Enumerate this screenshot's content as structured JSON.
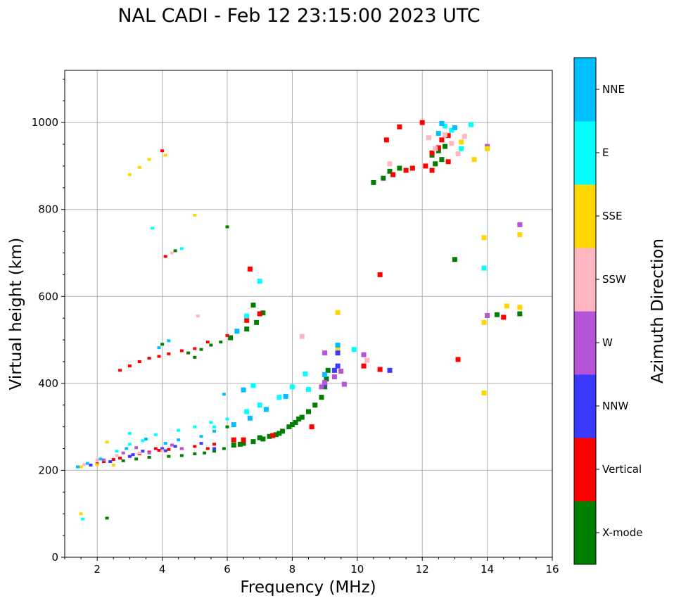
{
  "chart_data": {
    "type": "scatter",
    "title": "NAL CADI - Feb 12 23:15:00 2023 UTC",
    "xlabel": "Frequency (MHz)",
    "ylabel": "Virtual height (km)",
    "xlim": [
      1,
      16
    ],
    "ylim": [
      0,
      1120
    ],
    "xticks": [
      2,
      4,
      6,
      8,
      10,
      12,
      14,
      16
    ],
    "yticks": [
      0,
      200,
      400,
      600,
      800,
      1000
    ],
    "grid": true,
    "colorbar": {
      "label": "Azimuth Direction",
      "categories": [
        "X-mode",
        "Vertical",
        "NNW",
        "W",
        "SSW",
        "SSE",
        "E",
        "NNE"
      ],
      "colors": [
        "#008000",
        "#ff0000",
        "#3a3aff",
        "#b554d6",
        "#ffb6c1",
        "#ffd700",
        "#00ffff",
        "#00bfff"
      ]
    },
    "series": [
      {
        "name": "X-mode",
        "points": [
          [
            6.2,
            258
          ],
          [
            6.5,
            262
          ],
          [
            6.8,
            266
          ],
          [
            7.1,
            272
          ],
          [
            7.3,
            278
          ],
          [
            7.5,
            282
          ],
          [
            7.7,
            290
          ],
          [
            7.9,
            300
          ],
          [
            8.1,
            310
          ],
          [
            8.3,
            322
          ],
          [
            8.5,
            335
          ],
          [
            8.7,
            350
          ],
          [
            8.9,
            368
          ],
          [
            9.0,
            392
          ],
          [
            9.05,
            410
          ],
          [
            9.1,
            430
          ],
          [
            5.0,
            238
          ],
          [
            5.3,
            240
          ],
          [
            5.6,
            244
          ],
          [
            5.9,
            250
          ],
          [
            4.6,
            234
          ],
          [
            4.2,
            232
          ],
          [
            4.8,
            470
          ],
          [
            5.2,
            478
          ],
          [
            5.5,
            488
          ],
          [
            5.8,
            495
          ],
          [
            6.1,
            505
          ],
          [
            6.6,
            525
          ],
          [
            6.9,
            540
          ],
          [
            7.1,
            562
          ],
          [
            6.8,
            580
          ],
          [
            10.5,
            862
          ],
          [
            10.8,
            872
          ],
          [
            11.0,
            888
          ],
          [
            11.3,
            895
          ],
          [
            12.3,
            925
          ],
          [
            12.5,
            935
          ],
          [
            12.7,
            945
          ],
          [
            12.4,
            905
          ],
          [
            12.6,
            915
          ],
          [
            3.6,
            230
          ],
          [
            3.2,
            226
          ],
          [
            2.8,
            222
          ],
          [
            6.4,
            260
          ],
          [
            6.0,
            300
          ],
          [
            7.0,
            275
          ],
          [
            7.6,
            285
          ],
          [
            8.2,
            318
          ],
          [
            8.0,
            305
          ],
          [
            4.0,
            490
          ],
          [
            5.0,
            460
          ],
          [
            13.0,
            685
          ],
          [
            14.3,
            558
          ],
          [
            15.0,
            560
          ],
          [
            2.3,
            90
          ],
          [
            6.0,
            760
          ],
          [
            4.4,
            705
          ]
        ]
      },
      {
        "name": "Vertical",
        "points": [
          [
            2.0,
            215
          ],
          [
            2.2,
            220
          ],
          [
            2.5,
            225
          ],
          [
            2.7,
            228
          ],
          [
            3.0,
            232
          ],
          [
            3.3,
            238
          ],
          [
            3.6,
            242
          ],
          [
            3.9,
            246
          ],
          [
            4.2,
            248
          ],
          [
            4.6,
            250
          ],
          [
            5.0,
            255
          ],
          [
            5.4,
            250
          ],
          [
            2.7,
            430
          ],
          [
            3.0,
            440
          ],
          [
            3.3,
            450
          ],
          [
            3.6,
            458
          ],
          [
            3.9,
            462
          ],
          [
            4.2,
            468
          ],
          [
            4.6,
            475
          ],
          [
            5.0,
            480
          ],
          [
            5.4,
            495
          ],
          [
            6.0,
            510
          ],
          [
            6.6,
            545
          ],
          [
            7.0,
            560
          ],
          [
            10.7,
            650
          ],
          [
            13.1,
            455
          ],
          [
            4.1,
            692
          ],
          [
            4.0,
            935
          ],
          [
            11.1,
            880
          ],
          [
            11.5,
            890
          ],
          [
            11.7,
            895
          ],
          [
            12.1,
            900
          ],
          [
            12.3,
            930
          ],
          [
            12.5,
            942
          ],
          [
            12.6,
            960
          ],
          [
            12.8,
            970
          ],
          [
            12.3,
            890
          ],
          [
            12.8,
            910
          ],
          [
            10.9,
            960
          ],
          [
            11.3,
            990
          ],
          [
            12.0,
            1000
          ],
          [
            8.6,
            300
          ],
          [
            7.4,
            280
          ],
          [
            6.5,
            270
          ],
          [
            6.7,
            663
          ],
          [
            10.2,
            440
          ],
          [
            10.7,
            432
          ],
          [
            14.5,
            552
          ],
          [
            5.6,
            260
          ],
          [
            6.2,
            270
          ],
          [
            3.8,
            250
          ]
        ]
      },
      {
        "name": "NNW",
        "points": [
          [
            1.8,
            212
          ],
          [
            2.4,
            220
          ],
          [
            3.1,
            236
          ],
          [
            3.4,
            244
          ],
          [
            4.1,
            245
          ],
          [
            4.4,
            255
          ],
          [
            5.2,
            262
          ],
          [
            5.6,
            250
          ],
          [
            9.0,
            398
          ],
          [
            9.4,
            440
          ],
          [
            11.0,
            430
          ],
          [
            9.4,
            470
          ],
          [
            4.0,
            250
          ],
          [
            3.0,
            232
          ],
          [
            9.3,
            430
          ]
        ]
      },
      {
        "name": "W",
        "points": [
          [
            2.2,
            224
          ],
          [
            2.8,
            240
          ],
          [
            3.2,
            252
          ],
          [
            4.3,
            258
          ],
          [
            4.6,
            250
          ],
          [
            8.9,
            392
          ],
          [
            9.0,
            402
          ],
          [
            9.3,
            415
          ],
          [
            9.5,
            428
          ],
          [
            9.0,
            470
          ],
          [
            10.2,
            466
          ],
          [
            9.6,
            398
          ],
          [
            14.0,
            556
          ],
          [
            14.0,
            945
          ],
          [
            15.0,
            765
          ],
          [
            3.6,
            240
          ]
        ]
      },
      {
        "name": "SSW",
        "points": [
          [
            1.6,
            213
          ],
          [
            2.0,
            224
          ],
          [
            2.6,
            234
          ],
          [
            3.3,
            240
          ],
          [
            4.0,
            245
          ],
          [
            4.3,
            700
          ],
          [
            5.1,
            555
          ],
          [
            8.3,
            508
          ],
          [
            12.7,
            972
          ],
          [
            12.9,
            952
          ],
          [
            13.3,
            968
          ],
          [
            12.4,
            940
          ],
          [
            10.3,
            453
          ],
          [
            13.1,
            928
          ],
          [
            11.0,
            905
          ],
          [
            12.2,
            965
          ]
        ]
      },
      {
        "name": "SSE",
        "points": [
          [
            1.5,
            208
          ],
          [
            2.0,
            213
          ],
          [
            2.5,
            212
          ],
          [
            3.0,
            880
          ],
          [
            3.6,
            915
          ],
          [
            3.3,
            897
          ],
          [
            4.1,
            925
          ],
          [
            9.4,
            563
          ],
          [
            9.4,
            482
          ],
          [
            13.9,
            735
          ],
          [
            14.6,
            578
          ],
          [
            15.0,
            742
          ],
          [
            15.0,
            575
          ],
          [
            13.9,
            378
          ],
          [
            13.9,
            540
          ],
          [
            13.2,
            955
          ],
          [
            14.0,
            940
          ],
          [
            13.6,
            915
          ],
          [
            2.3,
            265
          ],
          [
            5.0,
            787
          ],
          [
            1.5,
            100
          ]
        ]
      },
      {
        "name": "E",
        "points": [
          [
            2.6,
            244
          ],
          [
            3.0,
            260
          ],
          [
            3.4,
            268
          ],
          [
            3.8,
            282
          ],
          [
            4.5,
            292
          ],
          [
            5.0,
            300
          ],
          [
            5.5,
            310
          ],
          [
            6.0,
            318
          ],
          [
            6.6,
            335
          ],
          [
            7.0,
            350
          ],
          [
            7.6,
            368
          ],
          [
            8.0,
            392
          ],
          [
            8.4,
            422
          ],
          [
            3.7,
            757
          ],
          [
            4.6,
            710
          ],
          [
            5.6,
            300
          ],
          [
            6.8,
            395
          ],
          [
            6.6,
            555
          ],
          [
            7.0,
            635
          ],
          [
            13.2,
            940
          ],
          [
            13.5,
            995
          ],
          [
            12.7,
            992
          ],
          [
            12.9,
            982
          ],
          [
            13.9,
            665
          ],
          [
            9.9,
            478
          ],
          [
            8.5,
            386
          ],
          [
            1.55,
            88
          ],
          [
            3.0,
            285
          ]
        ]
      },
      {
        "name": "NNE",
        "points": [
          [
            1.4,
            208
          ],
          [
            1.7,
            216
          ],
          [
            2.1,
            226
          ],
          [
            2.9,
            250
          ],
          [
            3.5,
            272
          ],
          [
            4.1,
            262
          ],
          [
            4.5,
            270
          ],
          [
            5.2,
            278
          ],
          [
            5.6,
            290
          ],
          [
            6.2,
            305
          ],
          [
            6.7,
            320
          ],
          [
            7.2,
            340
          ],
          [
            7.8,
            370
          ],
          [
            9.0,
            420
          ],
          [
            9.4,
            488
          ],
          [
            6.5,
            385
          ],
          [
            5.9,
            375
          ],
          [
            6.3,
            520
          ],
          [
            4.2,
            498
          ],
          [
            3.9,
            482
          ],
          [
            12.6,
            998
          ],
          [
            13.0,
            988
          ],
          [
            12.5,
            975
          ]
        ]
      }
    ]
  }
}
